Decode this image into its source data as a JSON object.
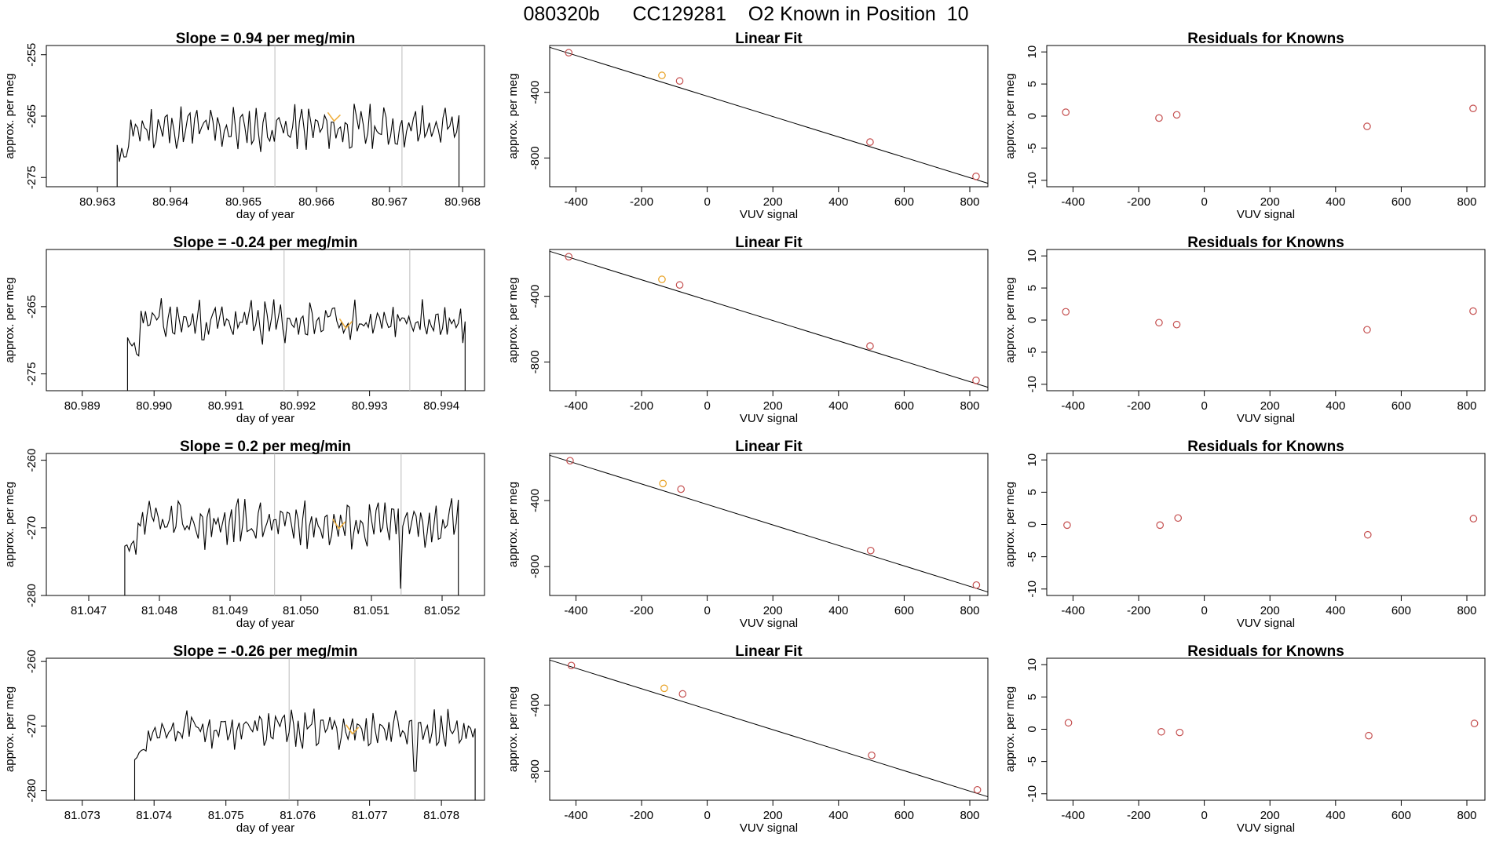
{
  "header": {
    "title": "080320b      CC129281    O2 Known in Position  10"
  },
  "chart_data": [
    {
      "type": "line",
      "row": 0,
      "col": 0,
      "title": "Slope =  0.94  per meg/min",
      "xlabel": "day of year",
      "ylabel": "approx. per meg",
      "xlim": [
        80.9623,
        80.9683
      ],
      "ylim": [
        -276.5,
        -253.5
      ],
      "xticks": [
        80.963,
        80.964,
        80.965,
        80.966,
        80.967,
        80.968
      ],
      "xtick_labels": [
        "80.963",
        "80.964",
        "80.965",
        "80.966",
        "80.967",
        "80.968"
      ],
      "yticks": [
        -275,
        -265,
        -255
      ],
      "ytick_labels": [
        "-275",
        "-265",
        "-255"
      ],
      "vlines": [
        80.96543,
        80.96717
      ],
      "trace": {
        "x0": 80.96327,
        "x1": 80.96795,
        "mean": -267,
        "amp": 3.4,
        "seed": 11,
        "drops": [
          {
            "at": "start",
            "to": -276.5
          },
          {
            "at": "end",
            "to": -276.5
          }
        ]
      },
      "highlight": {
        "x": 80.96624,
        "y": -265.2,
        "color": "#f0b040"
      },
      "line_color": "#000000"
    },
    {
      "type": "scatter",
      "row": 0,
      "col": 1,
      "title": "Linear Fit",
      "xlabel": "VUV signal",
      "ylabel": "approx. per meg",
      "xlim": [
        -480,
        855
      ],
      "ylim": [
        -975,
        -115
      ],
      "xticks": [
        -400,
        -200,
        0,
        200,
        400,
        600,
        800
      ],
      "xtick_labels": [
        "-400",
        "-200",
        "0",
        "200",
        "400",
        "600",
        "800"
      ],
      "yticks": [
        -800,
        -400
      ],
      "ytick_labels": [
        "-800",
        "-400"
      ],
      "points": [
        {
          "x": -422,
          "y": -159,
          "color": "#c44e4e"
        },
        {
          "x": -138,
          "y": -297,
          "color": "#e8a020"
        },
        {
          "x": -84,
          "y": -331,
          "color": "#c44e4e"
        },
        {
          "x": 496,
          "y": -703,
          "color": "#c44e4e"
        },
        {
          "x": 819,
          "y": -912,
          "color": "#c44e4e"
        }
      ],
      "fit": {
        "x": [
          -480,
          855
        ],
        "y": [
          -126,
          -954
        ]
      }
    },
    {
      "type": "scatter",
      "row": 0,
      "col": 2,
      "title": "Residuals for Knowns",
      "xlabel": "VUV signal",
      "ylabel": "approx. per meg",
      "xlim": [
        -480,
        855
      ],
      "ylim": [
        -11,
        11
      ],
      "xticks": [
        -400,
        -200,
        0,
        200,
        400,
        600,
        800
      ],
      "xtick_labels": [
        "-400",
        "-200",
        "0",
        "200",
        "400",
        "600",
        "800"
      ],
      "yticks": [
        -10,
        -5,
        0,
        5,
        10
      ],
      "ytick_labels": [
        "-10",
        "-5",
        "0",
        "5",
        "10"
      ],
      "points": [
        {
          "x": -422,
          "y": 0.6,
          "color": "#c44e4e"
        },
        {
          "x": -138,
          "y": -0.3,
          "color": "#c44e4e"
        },
        {
          "x": -84,
          "y": 0.2,
          "color": "#c44e4e"
        },
        {
          "x": 496,
          "y": -1.6,
          "color": "#c44e4e"
        },
        {
          "x": 819,
          "y": 1.2,
          "color": "#c44e4e"
        }
      ]
    },
    {
      "type": "line",
      "row": 1,
      "col": 0,
      "title": "Slope =  -0.24  per meg/min",
      "xlabel": "day of year",
      "ylabel": "approx. per meg",
      "xlim": [
        80.9885,
        80.9946
      ],
      "ylim": [
        -277.5,
        -256.5
      ],
      "xticks": [
        80.989,
        80.99,
        80.991,
        80.992,
        80.993,
        80.994
      ],
      "xtick_labels": [
        "80.989",
        "80.990",
        "80.991",
        "80.992",
        "80.993",
        "80.994"
      ],
      "yticks": [
        -275,
        -265
      ],
      "ytick_labels": [
        "-275",
        "-265"
      ],
      "vlines": [
        80.99181,
        80.99356
      ],
      "trace": {
        "x0": 80.98963,
        "x1": 80.99433,
        "mean": -267.3,
        "amp": 3.0,
        "seed": 23,
        "drops": [
          {
            "at": "start",
            "to": -277.5
          },
          {
            "at": "end",
            "to": -277.5
          }
        ]
      },
      "highlight": {
        "x": 80.99267,
        "y": -267.6,
        "color": "#f0b040"
      },
      "line_color": "#000000"
    },
    {
      "type": "scatter",
      "row": 1,
      "col": 1,
      "title": "Linear Fit",
      "xlabel": "VUV signal",
      "ylabel": "approx. per meg",
      "xlim": [
        -480,
        855
      ],
      "ylim": [
        -975,
        -115
      ],
      "xticks": [
        -400,
        -200,
        0,
        200,
        400,
        600,
        800
      ],
      "xtick_labels": [
        "-400",
        "-200",
        "0",
        "200",
        "400",
        "600",
        "800"
      ],
      "yticks": [
        -800,
        -400
      ],
      "ytick_labels": [
        "-800",
        "-400"
      ],
      "points": [
        {
          "x": -422,
          "y": -159,
          "color": "#c44e4e"
        },
        {
          "x": -138,
          "y": -297,
          "color": "#e8a020"
        },
        {
          "x": -84,
          "y": -331,
          "color": "#c44e4e"
        },
        {
          "x": 496,
          "y": -703,
          "color": "#c44e4e"
        },
        {
          "x": 819,
          "y": -912,
          "color": "#c44e4e"
        }
      ],
      "fit": {
        "x": [
          -480,
          855
        ],
        "y": [
          -126,
          -954
        ]
      }
    },
    {
      "type": "scatter",
      "row": 1,
      "col": 2,
      "title": "Residuals for Knowns",
      "xlabel": "VUV signal",
      "ylabel": "approx. per meg",
      "xlim": [
        -480,
        855
      ],
      "ylim": [
        -11,
        11
      ],
      "xticks": [
        -400,
        -200,
        0,
        200,
        400,
        600,
        800
      ],
      "xtick_labels": [
        "-400",
        "-200",
        "0",
        "200",
        "400",
        "600",
        "800"
      ],
      "yticks": [
        -10,
        -5,
        0,
        5,
        10
      ],
      "ytick_labels": [
        "-10",
        "-5",
        "0",
        "5",
        "10"
      ],
      "points": [
        {
          "x": -422,
          "y": 1.3,
          "color": "#c44e4e"
        },
        {
          "x": -138,
          "y": -0.4,
          "color": "#c44e4e"
        },
        {
          "x": -84,
          "y": -0.7,
          "color": "#c44e4e"
        },
        {
          "x": 496,
          "y": -1.5,
          "color": "#c44e4e"
        },
        {
          "x": 819,
          "y": 1.4,
          "color": "#c44e4e"
        }
      ]
    },
    {
      "type": "line",
      "row": 2,
      "col": 0,
      "title": "Slope =  0.2  per meg/min",
      "xlabel": "day of year",
      "ylabel": "approx. per meg",
      "xlim": [
        81.0464,
        81.0526
      ],
      "ylim": [
        -280,
        -259
      ],
      "xticks": [
        81.047,
        81.048,
        81.049,
        81.05,
        81.051,
        81.052
      ],
      "xtick_labels": [
        "81.047",
        "81.048",
        "81.049",
        "81.050",
        "81.051",
        "81.052"
      ],
      "yticks": [
        -280,
        -270,
        -260
      ],
      "ytick_labels": [
        "-280",
        "-270",
        "-260"
      ],
      "vlines": [
        81.04963,
        81.05142
      ],
      "trace": {
        "x0": 81.04751,
        "x1": 81.05223,
        "mean": -269.3,
        "amp": 3.2,
        "seed": 37,
        "drops": [
          {
            "at": "start",
            "to": -280
          },
          {
            "at": "end",
            "to": -280
          },
          {
            "at": 81.05142,
            "to": -279
          }
        ]
      },
      "highlight": {
        "x": 81.05054,
        "y": -269.5,
        "color": "#f0b040"
      },
      "line_color": "#000000"
    },
    {
      "type": "scatter",
      "row": 2,
      "col": 1,
      "title": "Linear Fit",
      "xlabel": "VUV signal",
      "ylabel": "approx. per meg",
      "xlim": [
        -480,
        855
      ],
      "ylim": [
        -975,
        -115
      ],
      "xticks": [
        -400,
        -200,
        0,
        200,
        400,
        600,
        800
      ],
      "xtick_labels": [
        "-400",
        "-200",
        "0",
        "200",
        "400",
        "600",
        "800"
      ],
      "yticks": [
        -800,
        -400
      ],
      "ytick_labels": [
        "-800",
        "-400"
      ],
      "points": [
        {
          "x": -418,
          "y": -159,
          "color": "#c44e4e"
        },
        {
          "x": -135,
          "y": -297,
          "color": "#e8a020"
        },
        {
          "x": -80,
          "y": -331,
          "color": "#c44e4e"
        },
        {
          "x": 498,
          "y": -703,
          "color": "#c44e4e"
        },
        {
          "x": 820,
          "y": -912,
          "color": "#c44e4e"
        }
      ],
      "fit": {
        "x": [
          -480,
          855
        ],
        "y": [
          -126,
          -954
        ]
      }
    },
    {
      "type": "scatter",
      "row": 2,
      "col": 2,
      "title": "Residuals for Knowns",
      "xlabel": "VUV signal",
      "ylabel": "approx. per meg",
      "xlim": [
        -480,
        855
      ],
      "ylim": [
        -11,
        11
      ],
      "xticks": [
        -400,
        -200,
        0,
        200,
        400,
        600,
        800
      ],
      "xtick_labels": [
        "-400",
        "-200",
        "0",
        "200",
        "400",
        "600",
        "800"
      ],
      "yticks": [
        -10,
        -5,
        0,
        5,
        10
      ],
      "ytick_labels": [
        "-10",
        "-5",
        "0",
        "5",
        "10"
      ],
      "points": [
        {
          "x": -418,
          "y": -0.1,
          "color": "#c44e4e"
        },
        {
          "x": -135,
          "y": -0.1,
          "color": "#c44e4e"
        },
        {
          "x": -80,
          "y": 1.0,
          "color": "#c44e4e"
        },
        {
          "x": 498,
          "y": -1.6,
          "color": "#c44e4e"
        },
        {
          "x": 820,
          "y": 0.9,
          "color": "#c44e4e"
        }
      ]
    },
    {
      "type": "line",
      "row": 3,
      "col": 0,
      "title": "Slope =  -0.26  per meg/min",
      "xlabel": "day of year",
      "ylabel": "approx. per meg",
      "xlim": [
        81.0725,
        81.0786
      ],
      "ylim": [
        -281.5,
        -259.5
      ],
      "xticks": [
        81.073,
        81.074,
        81.075,
        81.076,
        81.077,
        81.078
      ],
      "xtick_labels": [
        "81.073",
        "81.074",
        "81.075",
        "81.076",
        "81.077",
        "81.078"
      ],
      "yticks": [
        -280,
        -270,
        -260
      ],
      "ytick_labels": [
        "-280",
        "-270",
        "-260"
      ],
      "vlines": [
        81.07588,
        81.07763
      ],
      "trace": {
        "x0": 81.07373,
        "x1": 81.07847,
        "mean": -270.5,
        "amp": 2.8,
        "seed": 53,
        "drops": [
          {
            "at": "start",
            "to": -281.5
          },
          {
            "at": "end",
            "to": -281.5
          },
          {
            "at": 81.07763,
            "to": -277
          }
        ]
      },
      "highlight": {
        "x": 81.07676,
        "y": -270.6,
        "color": "#f0b040"
      },
      "line_color": "#000000"
    },
    {
      "type": "scatter",
      "row": 3,
      "col": 1,
      "title": "Linear Fit",
      "xlabel": "VUV signal",
      "ylabel": "approx. per meg",
      "xlim": [
        -480,
        855
      ],
      "ylim": [
        -975,
        -115
      ],
      "xticks": [
        -400,
        -200,
        0,
        200,
        400,
        600,
        800
      ],
      "xtick_labels": [
        "-400",
        "-200",
        "0",
        "200",
        "400",
        "600",
        "800"
      ],
      "yticks": [
        -800,
        -400
      ],
      "ytick_labels": [
        "-800",
        "-400"
      ],
      "points": [
        {
          "x": -414,
          "y": -159,
          "color": "#c44e4e"
        },
        {
          "x": -131,
          "y": -297,
          "color": "#e8a020"
        },
        {
          "x": -75,
          "y": -331,
          "color": "#c44e4e"
        },
        {
          "x": 501,
          "y": -703,
          "color": "#c44e4e"
        },
        {
          "x": 823,
          "y": -912,
          "color": "#c44e4e"
        }
      ],
      "fit": {
        "x": [
          -480,
          855
        ],
        "y": [
          -126,
          -954
        ]
      }
    },
    {
      "type": "scatter",
      "row": 3,
      "col": 2,
      "title": "Residuals for Knowns",
      "xlabel": "VUV signal",
      "ylabel": "approx. per meg",
      "xlim": [
        -480,
        855
      ],
      "ylim": [
        -11,
        11
      ],
      "xticks": [
        -400,
        -200,
        0,
        200,
        400,
        600,
        800
      ],
      "xtick_labels": [
        "-400",
        "-200",
        "0",
        "200",
        "400",
        "600",
        "800"
      ],
      "yticks": [
        -10,
        -5,
        0,
        5,
        10
      ],
      "ytick_labels": [
        "-10",
        "-5",
        "0",
        "5",
        "10"
      ],
      "points": [
        {
          "x": -414,
          "y": 1.0,
          "color": "#c44e4e"
        },
        {
          "x": -131,
          "y": -0.4,
          "color": "#c44e4e"
        },
        {
          "x": -75,
          "y": -0.5,
          "color": "#c44e4e"
        },
        {
          "x": 501,
          "y": -1.0,
          "color": "#c44e4e"
        },
        {
          "x": 823,
          "y": 0.9,
          "color": "#c44e4e"
        }
      ]
    }
  ]
}
